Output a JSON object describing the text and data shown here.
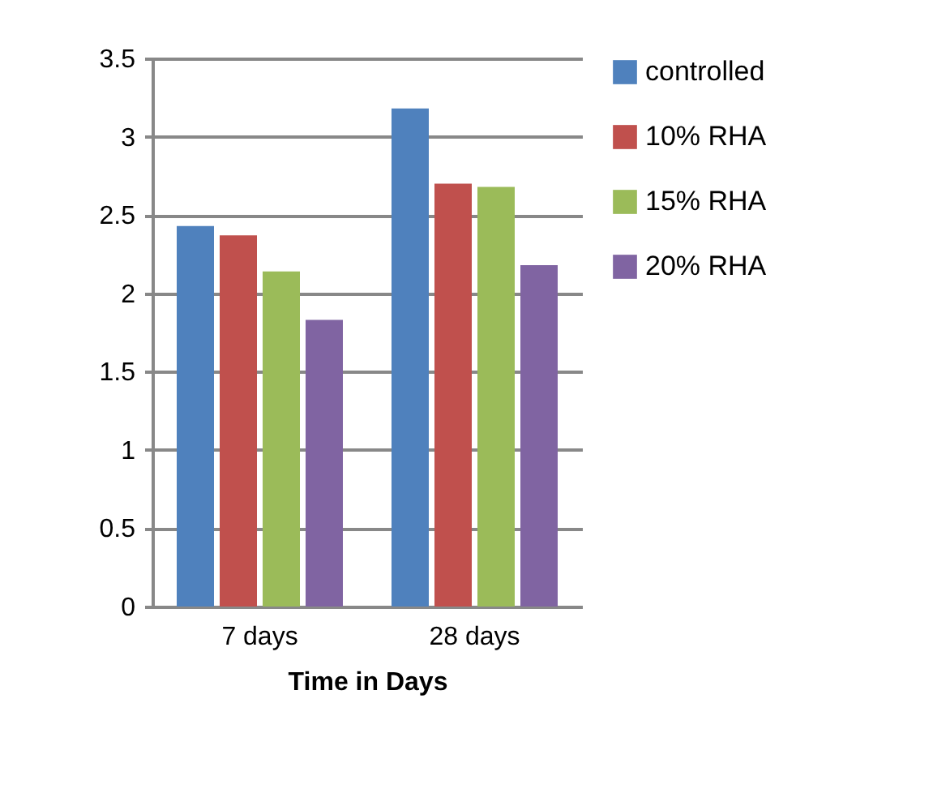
{
  "chart_data": {
    "type": "bar",
    "xlabel": "Time in  Days",
    "categories": [
      "7 days",
      "28 days"
    ],
    "series": [
      {
        "name": "controlled",
        "color": "#4f81bd",
        "values": [
          2.43,
          3.18
        ]
      },
      {
        "name": "10% RHA",
        "color": "#c0504d",
        "values": [
          2.37,
          2.7
        ]
      },
      {
        "name": "15% RHA",
        "color": "#9bbb59",
        "values": [
          2.14,
          2.68
        ]
      },
      {
        "name": "20% RHA",
        "color": "#8064a2",
        "values": [
          1.83,
          2.18
        ]
      }
    ],
    "ylim": [
      0,
      3.5
    ],
    "yticks": [
      0,
      0.5,
      1,
      1.5,
      2,
      2.5,
      3,
      3.5
    ],
    "grid": "y",
    "legend": "right"
  }
}
